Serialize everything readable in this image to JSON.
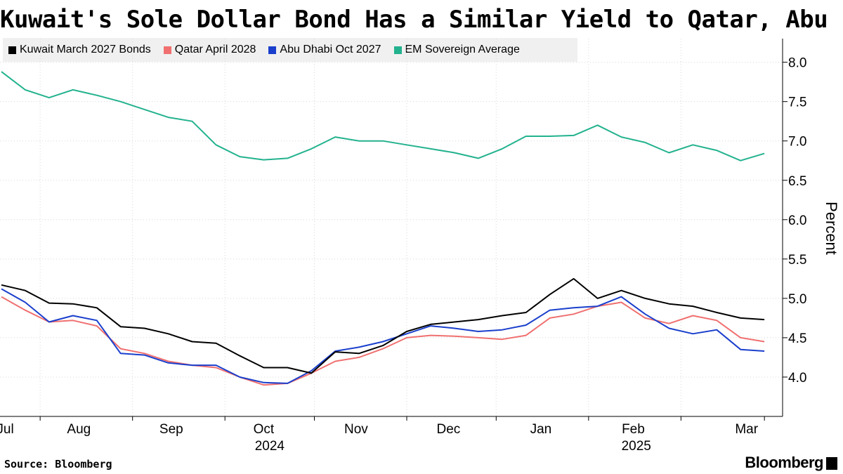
{
  "chart_data": {
    "type": "line",
    "title": "Kuwait's Sole Dollar Bond Has a Similar Yield to Qatar, Abu Dhabi",
    "ylabel": "Percent",
    "xlabel": "",
    "ylim": [
      3.5,
      8.3
    ],
    "yticks": [
      4.0,
      4.5,
      5.0,
      5.5,
      6.0,
      6.5,
      7.0,
      7.5,
      8.0
    ],
    "ytick_labels": [
      "4.0",
      "4.5",
      "5.0",
      "5.5",
      "6.0",
      "6.5",
      "7.0",
      "7.5",
      "8.0"
    ],
    "x_start_label": "2024-06-18",
    "x_end_label": "2025-03-03",
    "month_labels": [
      "Jul",
      "Aug",
      "Sep",
      "Oct",
      "Nov",
      "Dec",
      "Jan",
      "Feb",
      "Mar"
    ],
    "year_labels": [
      "2024",
      "2025"
    ],
    "grid": true,
    "legend_position": "top-left",
    "x_days": [
      0,
      8,
      16,
      24,
      32,
      40,
      48,
      56,
      64,
      72,
      80,
      88,
      96,
      104,
      112,
      120,
      128,
      136,
      144,
      152,
      160,
      168,
      176,
      184,
      192,
      200,
      208,
      216,
      224,
      232,
      240,
      248,
      256
    ],
    "series": [
      {
        "name": "Kuwait March 2027 Bonds",
        "color": "#000000",
        "values": [
          5.17,
          5.1,
          4.94,
          4.93,
          4.88,
          4.64,
          4.62,
          4.55,
          4.45,
          4.43,
          4.27,
          4.12,
          4.12,
          4.05,
          4.32,
          4.3,
          4.4,
          4.58,
          4.67,
          4.7,
          4.73,
          4.78,
          4.82,
          5.05,
          5.25,
          5.0,
          5.1,
          5.0,
          4.93,
          4.9,
          4.82,
          4.75,
          4.73
        ]
      },
      {
        "name": "Qatar April 2028",
        "color": "#f07070",
        "values": [
          5.02,
          4.85,
          4.7,
          4.72,
          4.65,
          4.36,
          4.3,
          4.2,
          4.15,
          4.12,
          4.0,
          3.9,
          3.92,
          4.05,
          4.2,
          4.25,
          4.36,
          4.5,
          4.53,
          4.52,
          4.5,
          4.48,
          4.53,
          4.75,
          4.8,
          4.9,
          4.95,
          4.75,
          4.68,
          4.78,
          4.72,
          4.5,
          4.45
        ]
      },
      {
        "name": "Abu Dhabi Oct 2027",
        "color": "#1a3fcc",
        "values": [
          5.12,
          4.95,
          4.7,
          4.78,
          4.72,
          4.3,
          4.28,
          4.18,
          4.15,
          4.15,
          4.0,
          3.93,
          3.92,
          4.08,
          4.33,
          4.38,
          4.45,
          4.55,
          4.65,
          4.62,
          4.58,
          4.6,
          4.66,
          4.85,
          4.88,
          4.9,
          5.02,
          4.8,
          4.62,
          4.55,
          4.6,
          4.35,
          4.33
        ]
      },
      {
        "name": "EM Sovereign Average",
        "color": "#23b28e",
        "values": [
          7.88,
          7.65,
          7.55,
          7.65,
          7.58,
          7.5,
          7.4,
          7.3,
          7.25,
          6.95,
          6.8,
          6.76,
          6.78,
          6.9,
          7.05,
          7.0,
          7.0,
          6.95,
          6.9,
          6.85,
          6.78,
          6.9,
          7.06,
          7.06,
          7.07,
          7.2,
          7.05,
          6.98,
          6.85,
          6.95,
          6.88,
          6.75,
          6.84
        ]
      }
    ]
  },
  "footer": {
    "source": "Source: Bloomberg",
    "brand": "Bloomberg"
  }
}
